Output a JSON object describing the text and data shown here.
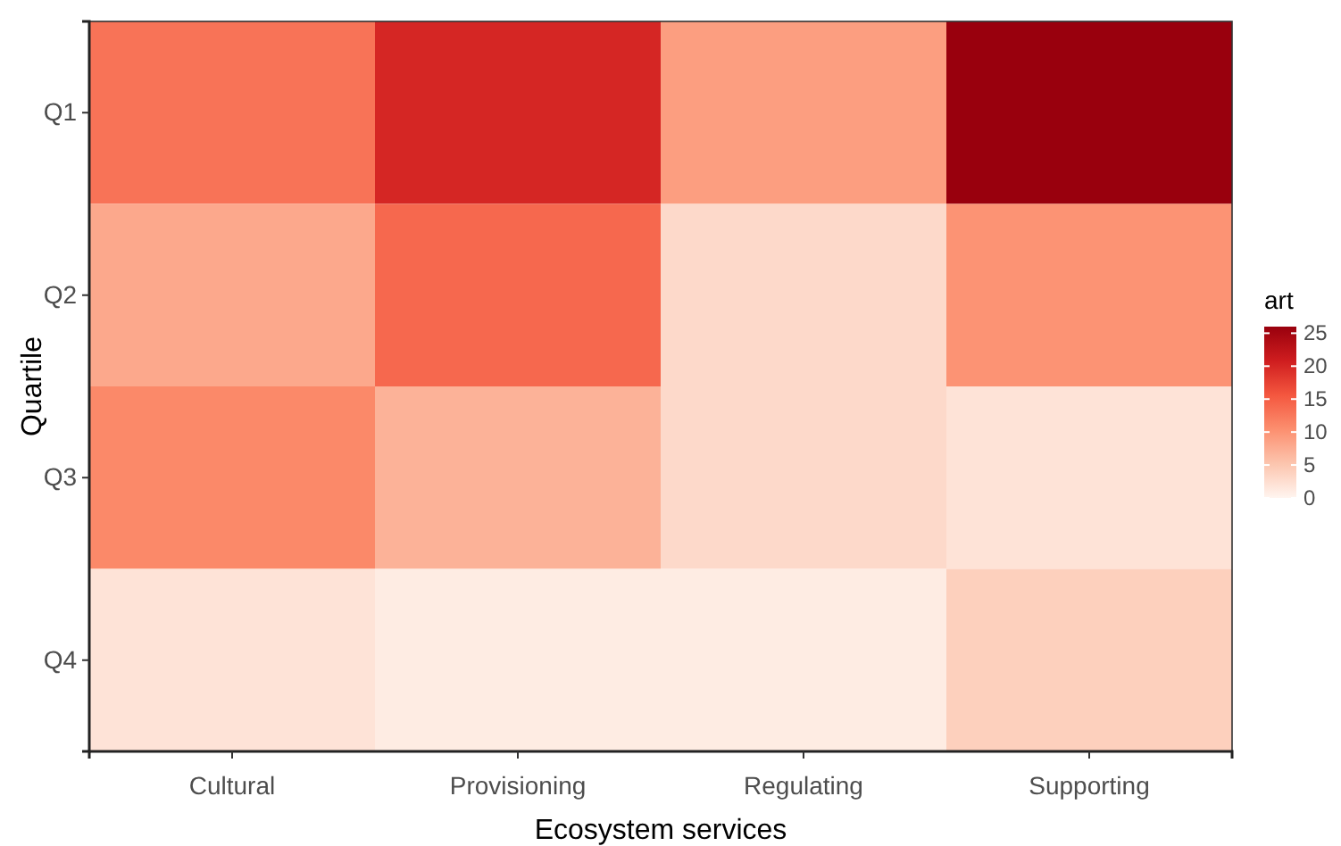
{
  "chart_data": {
    "type": "heatmap",
    "xlabel": "Ecosystem services",
    "ylabel": "Quartile",
    "legend_title": "art",
    "categories": [
      "Cultural",
      "Provisioning",
      "Regulating",
      "Supporting"
    ],
    "y_categories": [
      "Q1",
      "Q2",
      "Q3",
      "Q4"
    ],
    "cells": [
      [
        13,
        20,
        9,
        26
      ],
      [
        8,
        14,
        3,
        10
      ],
      [
        11,
        7,
        3,
        2
      ],
      [
        2,
        1,
        1,
        4
      ]
    ],
    "clim": [
      0,
      26
    ],
    "cticks": [
      0,
      5,
      10,
      15,
      20,
      25
    ]
  }
}
